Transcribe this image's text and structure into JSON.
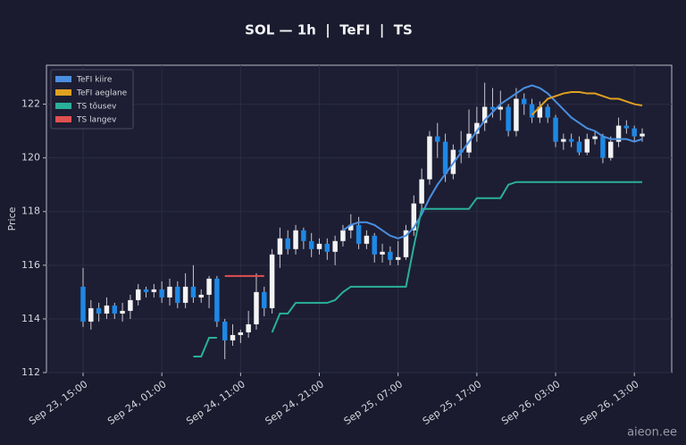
{
  "chart_data": {
    "type": "candlestick",
    "title": "SOL — 1h  |  TeFI  |  TS",
    "ylabel": "Price",
    "categories": [
      "Sep 23, 15:00",
      null,
      null,
      null,
      null,
      null,
      null,
      null,
      null,
      null,
      "Sep 24, 01:00",
      null,
      null,
      null,
      null,
      null,
      null,
      null,
      null,
      null,
      "Sep 24, 11:00",
      null,
      null,
      null,
      null,
      null,
      null,
      null,
      null,
      null,
      "Sep 24, 21:00",
      null,
      null,
      null,
      null,
      null,
      null,
      null,
      null,
      null,
      "Sep 25, 07:00",
      null,
      null,
      null,
      null,
      null,
      null,
      null,
      null,
      null,
      "Sep 25, 17:00",
      null,
      null,
      null,
      null,
      null,
      null,
      null,
      null,
      null,
      "Sep 26, 03:00",
      null,
      null,
      null,
      null,
      null,
      null,
      null,
      null,
      null,
      "Sep 26, 13:00",
      null
    ],
    "open": [
      115.2,
      113.9,
      114.4,
      114.2,
      114.5,
      114.2,
      114.3,
      114.7,
      115.1,
      115.0,
      115.1,
      114.8,
      115.2,
      114.6,
      115.2,
      114.8,
      114.9,
      115.5,
      113.9,
      113.2,
      113.4,
      113.5,
      113.8,
      115.0,
      114.4,
      116.4,
      117.0,
      116.6,
      117.3,
      116.9,
      116.6,
      116.8,
      116.5,
      116.9,
      117.3,
      117.5,
      116.8,
      117.1,
      116.4,
      116.5,
      116.2,
      116.3,
      117.3,
      118.3,
      119.2,
      120.8,
      120.6,
      119.4,
      120.3,
      120.2,
      120.9,
      121.3,
      121.9,
      121.8,
      121.9,
      121.0,
      122.2,
      122.0,
      121.5,
      121.9,
      121.5,
      120.6,
      120.7,
      120.6,
      120.2,
      120.7,
      120.8,
      120.0,
      120.6,
      121.2,
      121.1,
      120.8
    ],
    "high": [
      115.9,
      114.7,
      114.6,
      114.8,
      114.6,
      114.6,
      114.9,
      115.3,
      115.2,
      115.3,
      115.4,
      115.5,
      115.4,
      115.7,
      116.0,
      115.1,
      115.6,
      115.6,
      114.0,
      113.8,
      113.6,
      114.3,
      115.7,
      115.2,
      116.6,
      117.4,
      117.3,
      117.5,
      117.4,
      117.2,
      117.0,
      117.0,
      117.1,
      117.5,
      117.9,
      117.8,
      117.3,
      117.2,
      116.8,
      116.7,
      116.9,
      117.5,
      118.6,
      119.6,
      121.0,
      121.3,
      120.9,
      120.5,
      121.0,
      121.8,
      121.9,
      122.8,
      122.6,
      122.5,
      122.0,
      122.6,
      122.4,
      122.2,
      122.1,
      122.0,
      121.6,
      120.9,
      120.9,
      120.8,
      120.9,
      121.0,
      120.9,
      120.8,
      121.5,
      121.4,
      121.2,
      121.1
    ],
    "low": [
      113.7,
      113.6,
      113.9,
      114.0,
      114.0,
      113.9,
      114.0,
      114.5,
      114.8,
      114.8,
      114.6,
      114.5,
      114.4,
      114.4,
      114.6,
      114.6,
      114.4,
      113.7,
      112.5,
      113.0,
      113.1,
      113.3,
      113.6,
      114.1,
      114.2,
      115.9,
      116.4,
      116.4,
      116.6,
      116.3,
      116.4,
      116.2,
      116.0,
      116.7,
      117.0,
      116.6,
      116.6,
      116.1,
      116.1,
      116.0,
      116.0,
      116.2,
      117.1,
      118.0,
      119.0,
      120.0,
      119.1,
      119.2,
      119.8,
      120.0,
      120.6,
      121.0,
      121.5,
      121.4,
      120.8,
      120.8,
      121.6,
      121.3,
      121.3,
      121.3,
      120.4,
      120.3,
      120.4,
      120.1,
      120.1,
      120.5,
      119.8,
      119.9,
      120.4,
      120.9,
      120.6,
      120.6
    ],
    "close": [
      113.9,
      114.4,
      114.2,
      114.5,
      114.2,
      114.3,
      114.7,
      115.1,
      115.0,
      115.1,
      114.8,
      115.2,
      114.6,
      115.2,
      114.8,
      114.9,
      115.5,
      113.9,
      113.2,
      113.4,
      113.5,
      113.8,
      115.0,
      114.4,
      116.4,
      117.0,
      116.6,
      117.3,
      116.9,
      116.6,
      116.8,
      116.5,
      116.9,
      117.3,
      117.5,
      116.8,
      117.1,
      116.4,
      116.5,
      116.2,
      116.3,
      117.3,
      118.3,
      119.2,
      120.8,
      120.6,
      119.4,
      120.3,
      120.2,
      120.9,
      121.3,
      121.9,
      121.8,
      121.9,
      121.0,
      122.2,
      122.0,
      121.5,
      121.9,
      121.5,
      120.6,
      120.7,
      120.6,
      120.2,
      120.7,
      120.8,
      120.0,
      120.6,
      121.2,
      121.1,
      120.8,
      120.9
    ],
    "up_color": "#f4f4f4",
    "down_color": "#1e88e5",
    "series": [
      {
        "name": "TeFI kiire",
        "color": "#4a8fe0",
        "values": [
          null,
          null,
          null,
          null,
          null,
          null,
          null,
          null,
          null,
          null,
          null,
          null,
          null,
          null,
          null,
          null,
          null,
          null,
          null,
          null,
          null,
          null,
          null,
          null,
          null,
          null,
          null,
          null,
          null,
          null,
          null,
          null,
          null,
          117.3,
          117.5,
          117.6,
          117.6,
          117.5,
          117.3,
          117.1,
          117.0,
          117.1,
          117.4,
          117.9,
          118.5,
          119.0,
          119.4,
          119.8,
          120.2,
          120.6,
          121.0,
          121.4,
          121.7,
          122.0,
          122.2,
          122.4,
          122.6,
          122.7,
          122.6,
          122.4,
          122.1,
          121.8,
          121.5,
          121.3,
          121.1,
          121.0,
          120.8,
          120.7,
          120.7,
          120.7,
          120.6,
          120.7
        ]
      },
      {
        "name": "TeFI aeglane",
        "color": "#e0a020",
        "values": [
          null,
          null,
          null,
          null,
          null,
          null,
          null,
          null,
          null,
          null,
          null,
          null,
          null,
          null,
          null,
          null,
          null,
          null,
          null,
          null,
          null,
          null,
          null,
          null,
          null,
          null,
          null,
          null,
          null,
          null,
          null,
          null,
          null,
          null,
          null,
          null,
          null,
          null,
          null,
          null,
          null,
          null,
          null,
          null,
          null,
          null,
          null,
          null,
          null,
          null,
          null,
          null,
          null,
          null,
          null,
          null,
          null,
          121.6,
          121.9,
          122.2,
          122.3,
          122.4,
          122.45,
          122.45,
          122.4,
          122.4,
          122.3,
          122.2,
          122.2,
          122.1,
          122.0,
          121.95
        ]
      },
      {
        "name": "TS tõusev",
        "color": "#2ab09a",
        "values": [
          null,
          null,
          null,
          null,
          null,
          null,
          null,
          null,
          null,
          null,
          null,
          null,
          null,
          null,
          112.6,
          112.6,
          113.3,
          113.3,
          null,
          null,
          null,
          null,
          null,
          null,
          113.5,
          114.2,
          114.2,
          114.6,
          114.6,
          114.6,
          114.6,
          114.6,
          114.7,
          115.0,
          115.2,
          115.2,
          115.2,
          115.2,
          115.2,
          115.2,
          115.2,
          115.2,
          116.7,
          118.1,
          118.1,
          118.1,
          118.1,
          118.1,
          118.1,
          118.1,
          118.5,
          118.5,
          118.5,
          118.5,
          119.0,
          119.1,
          119.1,
          119.1,
          119.1,
          119.1,
          119.1,
          119.1,
          119.1,
          119.1,
          119.1,
          119.1,
          119.1,
          119.1,
          119.1,
          119.1,
          119.1,
          119.1
        ]
      },
      {
        "name": "TS langev",
        "color": "#e05050",
        "values": [
          null,
          null,
          null,
          null,
          null,
          null,
          null,
          null,
          null,
          null,
          null,
          null,
          null,
          null,
          null,
          null,
          null,
          null,
          115.6,
          115.6,
          115.6,
          115.6,
          115.6,
          115.6,
          null,
          null,
          null,
          null,
          null,
          null,
          null,
          null,
          null,
          null,
          null,
          null,
          null,
          null,
          null,
          null,
          null,
          null,
          null,
          null,
          null,
          null,
          null,
          null,
          null,
          null,
          null,
          null,
          null,
          null,
          null,
          null,
          null,
          null,
          null,
          null,
          null,
          null,
          null,
          null,
          null,
          null,
          null,
          null,
          null,
          null,
          null,
          null
        ]
      }
    ],
    "ylim": [
      112,
      123.45
    ],
    "yticks": [
      112,
      114,
      116,
      118,
      120,
      122
    ],
    "grid": true,
    "legend": "upper left"
  },
  "watermark": "aieon.ee"
}
